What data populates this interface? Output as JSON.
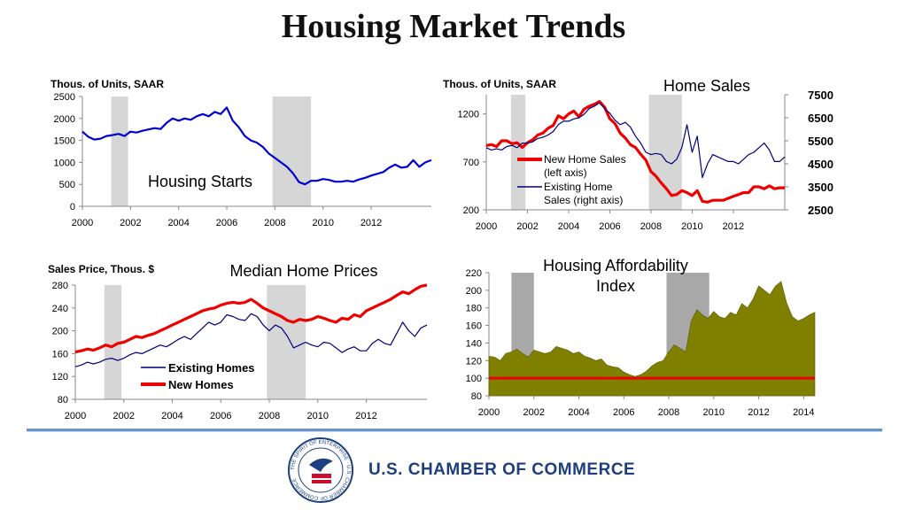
{
  "page": {
    "title": "Housing Market Trends"
  },
  "footer": {
    "organization": "U.S. CHAMBER OF COMMERCE",
    "seal_text": "THE SPIRIT OF ENTERPRISE · U.S. CHAMBER OF COMMERCE"
  },
  "colors": {
    "blue": "#0000cc",
    "red": "#ee0000",
    "navy": "#00007a",
    "olive": "#808000",
    "recession": "#d6d6d6",
    "recession_dark": "#a8a8a8"
  },
  "chart_data": [
    {
      "id": "housing-starts",
      "type": "line",
      "title": "Housing Starts",
      "ylabel": "Thous. of Units, SAAR",
      "xlim": [
        2000,
        2014.5
      ],
      "ylim": [
        0,
        2500
      ],
      "xticks": [
        2000,
        2002,
        2004,
        2006,
        2008,
        2010,
        2012
      ],
      "yticks": [
        0,
        500,
        1000,
        1500,
        2000,
        2500
      ],
      "recessions": [
        [
          2001.2,
          2001.9
        ],
        [
          2007.9,
          2009.5
        ]
      ],
      "series": [
        {
          "color": "#0000cc",
          "x": [
            2000,
            2000.25,
            2000.5,
            2000.75,
            2001,
            2001.25,
            2001.5,
            2001.75,
            2002,
            2002.25,
            2002.5,
            2002.75,
            2003,
            2003.25,
            2003.5,
            2003.75,
            2004,
            2004.25,
            2004.5,
            2004.75,
            2005,
            2005.25,
            2005.5,
            2005.75,
            2006,
            2006.25,
            2006.5,
            2006.75,
            2007,
            2007.25,
            2007.5,
            2007.75,
            2008,
            2008.25,
            2008.5,
            2008.75,
            2009,
            2009.25,
            2009.5,
            2009.75,
            2010,
            2010.25,
            2010.5,
            2010.75,
            2011,
            2011.25,
            2011.5,
            2011.75,
            2012,
            2012.25,
            2012.5,
            2012.75,
            2013,
            2013.25,
            2013.5,
            2013.75,
            2014,
            2014.25,
            2014.5
          ],
          "y": [
            1700,
            1580,
            1520,
            1540,
            1600,
            1620,
            1650,
            1600,
            1700,
            1680,
            1720,
            1750,
            1780,
            1760,
            1900,
            2000,
            1950,
            2000,
            1970,
            2050,
            2100,
            2050,
            2150,
            2100,
            2250,
            1950,
            1800,
            1600,
            1500,
            1450,
            1350,
            1200,
            1100,
            1000,
            900,
            750,
            550,
            500,
            580,
            580,
            620,
            600,
            560,
            560,
            580,
            560,
            610,
            650,
            700,
            740,
            780,
            880,
            950,
            880,
            900,
            1050,
            900,
            1000,
            1050
          ]
        }
      ]
    },
    {
      "id": "home-sales",
      "type": "line",
      "title": "Home Sales",
      "ylabel": "Thous. of Units, SAAR",
      "xlim": [
        2000,
        2014.5
      ],
      "ylim": [
        200,
        1400
      ],
      "y2lim": [
        2500,
        7500
      ],
      "xticks": [
        2000,
        2002,
        2004,
        2006,
        2008,
        2010,
        2012
      ],
      "yticks": [
        200,
        700,
        1200
      ],
      "y2ticks": [
        2500,
        3500,
        4500,
        5500,
        6500,
        7500
      ],
      "recessions": [
        [
          2001.2,
          2001.9
        ],
        [
          2007.9,
          2009.5
        ]
      ],
      "series": [
        {
          "name": "New Home Sales (left axis)",
          "legend_lines": [
            "New Home Sales",
            "(left axis)"
          ],
          "axis": "left",
          "color": "#ee0000",
          "x": [
            2000,
            2000.25,
            2000.5,
            2000.75,
            2001,
            2001.25,
            2001.5,
            2001.75,
            2002,
            2002.25,
            2002.5,
            2002.75,
            2003,
            2003.25,
            2003.5,
            2003.75,
            2004,
            2004.25,
            2004.5,
            2004.75,
            2005,
            2005.25,
            2005.5,
            2005.75,
            2006,
            2006.25,
            2006.5,
            2006.75,
            2007,
            2007.25,
            2007.5,
            2007.75,
            2008,
            2008.25,
            2008.5,
            2008.75,
            2009,
            2009.25,
            2009.5,
            2009.75,
            2010,
            2010.25,
            2010.5,
            2010.75,
            2011,
            2011.25,
            2011.5,
            2011.75,
            2012,
            2012.25,
            2012.5,
            2012.75,
            2013,
            2013.25,
            2013.5,
            2013.75,
            2014,
            2014.25,
            2014.5
          ],
          "y": [
            870,
            880,
            860,
            920,
            920,
            890,
            900,
            850,
            900,
            930,
            980,
            1000,
            1050,
            1080,
            1180,
            1150,
            1200,
            1230,
            1170,
            1250,
            1280,
            1300,
            1330,
            1270,
            1150,
            1100,
            1000,
            950,
            880,
            850,
            780,
            720,
            600,
            550,
            480,
            420,
            350,
            360,
            400,
            380,
            350,
            400,
            290,
            280,
            300,
            300,
            300,
            320,
            340,
            360,
            380,
            380,
            440,
            440,
            420,
            450,
            420,
            430,
            430
          ]
        },
        {
          "name": "Existing Home Sales (right axis)",
          "legend_lines": [
            "Existing Home",
            "Sales (right axis)"
          ],
          "axis": "right",
          "color": "#00007a",
          "x": [
            2000,
            2000.25,
            2000.5,
            2000.75,
            2001,
            2001.25,
            2001.5,
            2001.75,
            2002,
            2002.25,
            2002.5,
            2002.75,
            2003,
            2003.25,
            2003.5,
            2003.75,
            2004,
            2004.25,
            2004.5,
            2004.75,
            2005,
            2005.25,
            2005.5,
            2005.75,
            2006,
            2006.25,
            2006.5,
            2006.75,
            2007,
            2007.25,
            2007.5,
            2007.75,
            2008,
            2008.25,
            2008.5,
            2008.75,
            2009,
            2009.25,
            2009.5,
            2009.75,
            2010,
            2010.25,
            2010.5,
            2010.75,
            2011,
            2011.25,
            2011.5,
            2011.75,
            2012,
            2012.25,
            2012.5,
            2012.75,
            2013,
            2013.25,
            2013.5,
            2013.75,
            2014,
            2014.25,
            2014.5
          ],
          "y": [
            5200,
            5100,
            5150,
            5100,
            5250,
            5300,
            5200,
            5400,
            5400,
            5450,
            5600,
            5650,
            5750,
            5900,
            6200,
            6350,
            6350,
            6450,
            6500,
            6650,
            6900,
            7000,
            7150,
            6900,
            6700,
            6400,
            6200,
            6300,
            6100,
            5700,
            5400,
            5000,
            4900,
            4950,
            4900,
            4600,
            4500,
            4700,
            5200,
            6200,
            5000,
            5700,
            3900,
            4500,
            4900,
            4800,
            4700,
            4600,
            4600,
            4500,
            4700,
            4900,
            5000,
            5200,
            5400,
            5100,
            4600,
            4600,
            4800
          ]
        }
      ]
    },
    {
      "id": "median-home-prices",
      "type": "line",
      "title": "Median Home Prices",
      "ylabel": "Sales Price, Thous. $",
      "xlim": [
        2000,
        2014.5
      ],
      "ylim": [
        80,
        280
      ],
      "xticks": [
        2000,
        2002,
        2004,
        2006,
        2008,
        2010,
        2012
      ],
      "yticks": [
        80,
        120,
        160,
        200,
        240,
        280
      ],
      "recessions": [
        [
          2001.2,
          2001.9
        ],
        [
          2007.9,
          2009.5
        ]
      ],
      "series": [
        {
          "name": "Existing Homes",
          "color": "#00007a",
          "x": [
            2000,
            2000.25,
            2000.5,
            2000.75,
            2001,
            2001.25,
            2001.5,
            2001.75,
            2002,
            2002.25,
            2002.5,
            2002.75,
            2003,
            2003.25,
            2003.5,
            2003.75,
            2004,
            2004.25,
            2004.5,
            2004.75,
            2005,
            2005.25,
            2005.5,
            2005.75,
            2006,
            2006.25,
            2006.5,
            2006.75,
            2007,
            2007.25,
            2007.5,
            2007.75,
            2008,
            2008.25,
            2008.5,
            2008.75,
            2009,
            2009.25,
            2009.5,
            2009.75,
            2010,
            2010.25,
            2010.5,
            2010.75,
            2011,
            2011.25,
            2011.5,
            2011.75,
            2012,
            2012.25,
            2012.5,
            2012.75,
            2013,
            2013.25,
            2013.5,
            2013.75,
            2014,
            2014.25,
            2014.5
          ],
          "y": [
            137,
            140,
            145,
            142,
            145,
            150,
            152,
            148,
            152,
            158,
            162,
            160,
            165,
            170,
            175,
            172,
            178,
            185,
            190,
            185,
            195,
            205,
            215,
            210,
            215,
            228,
            225,
            220,
            218,
            230,
            225,
            210,
            200,
            210,
            205,
            190,
            170,
            175,
            180,
            175,
            172,
            180,
            178,
            170,
            162,
            168,
            172,
            165,
            165,
            178,
            185,
            178,
            175,
            195,
            215,
            200,
            190,
            205,
            210
          ]
        },
        {
          "name": "New Homes",
          "color": "#ee0000",
          "x": [
            2000,
            2000.25,
            2000.5,
            2000.75,
            2001,
            2001.25,
            2001.5,
            2001.75,
            2002,
            2002.25,
            2002.5,
            2002.75,
            2003,
            2003.25,
            2003.5,
            2003.75,
            2004,
            2004.25,
            2004.5,
            2004.75,
            2005,
            2005.25,
            2005.5,
            2005.75,
            2006,
            2006.25,
            2006.5,
            2006.75,
            2007,
            2007.25,
            2007.5,
            2007.75,
            2008,
            2008.25,
            2008.5,
            2008.75,
            2009,
            2009.25,
            2009.5,
            2009.75,
            2010,
            2010.25,
            2010.5,
            2010.75,
            2011,
            2011.25,
            2011.5,
            2011.75,
            2012,
            2012.25,
            2012.5,
            2012.75,
            2013,
            2013.25,
            2013.5,
            2013.75,
            2014,
            2014.25,
            2014.5
          ],
          "y": [
            163,
            165,
            168,
            166,
            170,
            175,
            172,
            178,
            180,
            185,
            190,
            188,
            192,
            195,
            200,
            205,
            210,
            215,
            220,
            225,
            230,
            235,
            238,
            240,
            245,
            248,
            250,
            248,
            250,
            255,
            248,
            240,
            235,
            230,
            225,
            218,
            215,
            220,
            218,
            220,
            225,
            222,
            218,
            215,
            222,
            220,
            228,
            225,
            235,
            240,
            245,
            250,
            255,
            262,
            268,
            265,
            272,
            278,
            280
          ]
        }
      ]
    },
    {
      "id": "housing-affordability-index",
      "type": "area",
      "title": "Housing Affordability Index",
      "title_lines": [
        "Housing Affordability",
        "Index"
      ],
      "xlim": [
        2000,
        2014.5
      ],
      "ylim": [
        80,
        220
      ],
      "xticks": [
        2000,
        2002,
        2004,
        2006,
        2008,
        2010,
        2012,
        2014
      ],
      "yticks": [
        80,
        100,
        120,
        140,
        160,
        180,
        200,
        220
      ],
      "recessions": [
        [
          2001,
          2002
        ],
        [
          2007.9,
          2009.8
        ]
      ],
      "reference_line": 100,
      "series": [
        {
          "color": "#808000",
          "x": [
            2000,
            2000.25,
            2000.5,
            2000.75,
            2001,
            2001.25,
            2001.5,
            2001.75,
            2002,
            2002.25,
            2002.5,
            2002.75,
            2003,
            2003.25,
            2003.5,
            2003.75,
            2004,
            2004.25,
            2004.5,
            2004.75,
            2005,
            2005.25,
            2005.5,
            2005.75,
            2006,
            2006.25,
            2006.5,
            2006.75,
            2007,
            2007.25,
            2007.5,
            2007.75,
            2008,
            2008.25,
            2008.5,
            2008.75,
            2009,
            2009.25,
            2009.5,
            2009.75,
            2010,
            2010.25,
            2010.5,
            2010.75,
            2011,
            2011.25,
            2011.5,
            2011.75,
            2012,
            2012.25,
            2012.5,
            2012.75,
            2013,
            2013.25,
            2013.5,
            2013.75,
            2014,
            2014.25,
            2014.5
          ],
          "y": [
            125,
            124,
            120,
            128,
            130,
            133,
            128,
            124,
            132,
            130,
            128,
            130,
            136,
            134,
            132,
            128,
            130,
            125,
            123,
            120,
            122,
            115,
            113,
            112,
            107,
            104,
            102,
            104,
            108,
            114,
            118,
            120,
            130,
            138,
            134,
            130,
            165,
            178,
            172,
            168,
            176,
            170,
            168,
            175,
            172,
            185,
            180,
            190,
            205,
            200,
            195,
            205,
            210,
            185,
            170,
            165,
            168,
            172,
            175
          ]
        }
      ]
    }
  ]
}
